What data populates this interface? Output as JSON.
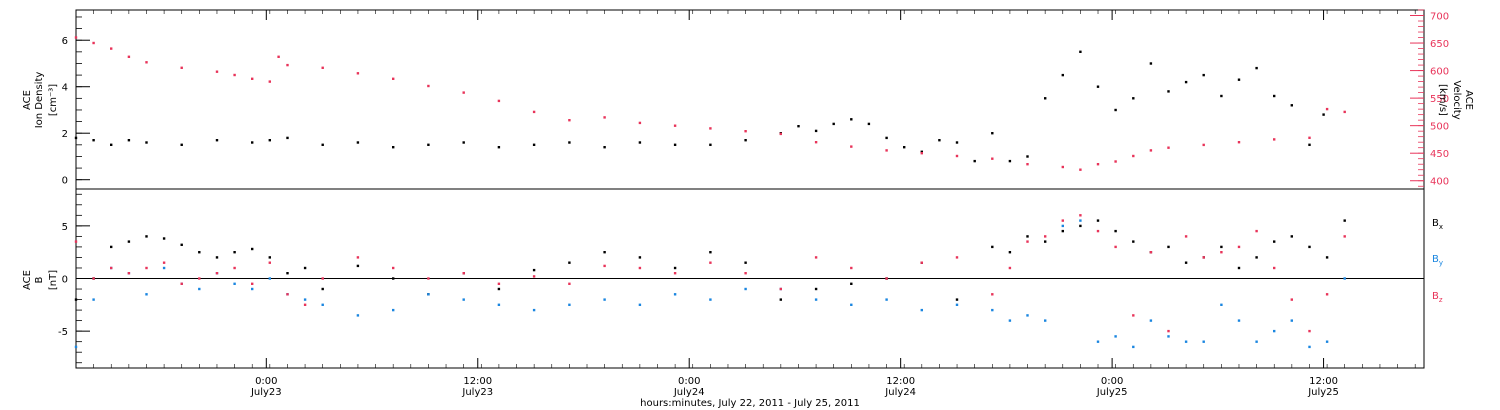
{
  "colors": {
    "density": "#000000",
    "velocity": "#e8345a",
    "bx": "#000000",
    "by": "#1a86e0",
    "bz": "#e8345a",
    "axis": "#000000"
  },
  "xaxis": {
    "title": "hours:minutes, July 22, 2011 - July 25, 2011",
    "range_hours": [
      0,
      76.5
    ],
    "ticks": [
      {
        "hour": 10.8,
        "time": "0:00",
        "date": "July23"
      },
      {
        "hour": 22.8,
        "time": "12:00",
        "date": "July23"
      },
      {
        "hour": 34.8,
        "time": "0:00",
        "date": "July24"
      },
      {
        "hour": 46.8,
        "time": "12:00",
        "date": "July24"
      },
      {
        "hour": 58.8,
        "time": "0:00",
        "date": "July25"
      },
      {
        "hour": 70.8,
        "time": "12:00",
        "date": "July25"
      }
    ]
  },
  "chart_data": [
    {
      "type": "scatter",
      "panel": "top",
      "ylabel_left": [
        "ACE",
        "Ion Density",
        "[cm⁻³]"
      ],
      "ylabel_right": [
        "ACE",
        "Velocity",
        "[km/s]"
      ],
      "ylim_left": [
        -0.4,
        7.3
      ],
      "ylim_right": [
        385,
        710
      ],
      "left_ticks": [
        "0",
        "2",
        "4",
        "6"
      ],
      "right_ticks": [
        "400",
        "450",
        "500",
        "550",
        "600",
        "650",
        "700"
      ],
      "series": [
        {
          "axis": "left",
          "color_key": "density",
          "x": [
            0,
            1,
            2,
            3,
            4,
            6,
            8,
            10,
            11,
            12,
            14,
            16,
            18,
            20,
            22,
            24,
            26,
            28,
            30,
            32,
            34,
            36,
            38,
            40,
            41,
            42,
            43,
            44,
            45,
            46,
            47,
            48,
            49,
            50,
            51,
            52,
            53,
            54,
            55,
            56,
            57,
            58,
            59,
            60,
            61,
            62,
            63,
            64,
            65,
            66,
            67,
            68,
            69,
            70,
            70.8
          ],
          "y": [
            1.8,
            1.7,
            1.5,
            1.7,
            1.6,
            1.5,
            1.7,
            1.6,
            1.7,
            1.8,
            1.5,
            1.6,
            1.4,
            1.5,
            1.6,
            1.4,
            1.5,
            1.6,
            1.4,
            1.6,
            1.5,
            1.5,
            1.7,
            2.0,
            2.3,
            2.1,
            2.4,
            2.6,
            2.4,
            1.8,
            1.4,
            1.2,
            1.7,
            1.6,
            0.8,
            2.0,
            0.8,
            1.0,
            3.5,
            4.5,
            5.5,
            4.0,
            3.0,
            3.5,
            5.0,
            3.8,
            4.2,
            4.5,
            3.6,
            4.3,
            4.8,
            3.6,
            3.2,
            1.5,
            2.8
          ]
        },
        {
          "axis": "right",
          "color_key": "velocity",
          "x": [
            0,
            1,
            2,
            3,
            4,
            6,
            8,
            9,
            10,
            11,
            11.5,
            12,
            14,
            16,
            18,
            20,
            22,
            24,
            26,
            28,
            30,
            32,
            34,
            36,
            38,
            40,
            42,
            44,
            46,
            48,
            50,
            52,
            54,
            56,
            57,
            58,
            59,
            60,
            61,
            62,
            64,
            66,
            68,
            70,
            71,
            72
          ],
          "y": [
            660,
            650,
            640,
            625,
            615,
            605,
            598,
            592,
            585,
            580,
            625,
            610,
            605,
            595,
            585,
            572,
            560,
            545,
            525,
            510,
            515,
            505,
            500,
            495,
            490,
            485,
            470,
            462,
            455,
            450,
            445,
            440,
            430,
            425,
            420,
            430,
            435,
            445,
            455,
            460,
            465,
            470,
            475,
            478,
            530,
            525
          ]
        }
      ]
    },
    {
      "type": "scatter",
      "panel": "bottom",
      "ylabel_left": [
        "ACE",
        "B",
        "[nT]"
      ],
      "ylim": [
        -8.5,
        8.5
      ],
      "left_ticks": [
        "-5",
        "0",
        "5"
      ],
      "series": [
        {
          "name": "Bx",
          "color_key": "bx",
          "x": [
            0,
            1,
            2,
            3,
            4,
            5,
            6,
            7,
            8,
            9,
            10,
            11,
            12,
            13,
            14,
            16,
            18,
            20,
            22,
            24,
            26,
            28,
            30,
            32,
            34,
            36,
            38,
            40,
            42,
            44,
            46,
            48,
            50,
            52,
            53,
            54,
            55,
            56,
            57,
            58,
            59,
            60,
            61,
            62,
            63,
            64,
            65,
            66,
            67,
            68,
            69,
            70,
            71,
            72
          ],
          "y": [
            -2,
            0,
            3,
            3.5,
            4,
            3.8,
            3.2,
            2.5,
            2,
            2.5,
            2.8,
            2,
            0.5,
            1,
            -1,
            1.2,
            0,
            -1.5,
            0.5,
            -1,
            0.8,
            1.5,
            2.5,
            2,
            1,
            2.5,
            1.5,
            -2,
            -1,
            -0.5,
            0,
            1.5,
            -2,
            3,
            2.5,
            4,
            3.5,
            4.5,
            5,
            5.5,
            4.5,
            3.5,
            2.5,
            3,
            1.5,
            2,
            3,
            1,
            2,
            3.5,
            4,
            3,
            2,
            5.5
          ]
        },
        {
          "name": "By",
          "color_key": "by",
          "x": [
            0,
            1,
            2,
            3,
            4,
            5,
            6,
            7,
            8,
            9,
            10,
            11,
            12,
            13,
            14,
            16,
            18,
            20,
            22,
            24,
            26,
            28,
            30,
            32,
            34,
            36,
            38,
            40,
            42,
            44,
            46,
            48,
            50,
            52,
            53,
            54,
            55,
            56,
            57,
            58,
            59,
            60,
            61,
            62,
            63,
            64,
            65,
            66,
            67,
            68,
            69,
            70,
            71,
            72
          ],
          "y": [
            -6.5,
            -2,
            1,
            0.5,
            -1.5,
            1,
            -0.5,
            -1,
            0.5,
            -0.5,
            -1,
            0,
            -1.5,
            -2,
            -2.5,
            -3.5,
            -3,
            -1.5,
            -2,
            -2.5,
            -3,
            -2.5,
            -2,
            -2.5,
            -1.5,
            -2,
            -1,
            -1,
            -2,
            -2.5,
            -2,
            -3,
            -2.5,
            -3,
            -4,
            -3.5,
            -4,
            5,
            5.5,
            -6,
            -5.5,
            -6.5,
            -4,
            -5.5,
            -6,
            -6,
            -2.5,
            -4,
            -6,
            -5,
            -4,
            -6.5,
            -6,
            0
          ]
        },
        {
          "name": "Bz",
          "color_key": "bz",
          "x": [
            0,
            1,
            2,
            3,
            4,
            5,
            6,
            7,
            8,
            9,
            10,
            11,
            12,
            13,
            14,
            16,
            18,
            20,
            22,
            24,
            26,
            28,
            30,
            32,
            34,
            36,
            38,
            40,
            42,
            44,
            46,
            48,
            50,
            52,
            53,
            54,
            55,
            56,
            57,
            58,
            59,
            60,
            61,
            62,
            63,
            64,
            65,
            66,
            67,
            68,
            69,
            70,
            71,
            72
          ],
          "y": [
            3.5,
            0,
            1,
            0.5,
            1,
            1.5,
            -0.5,
            0,
            0.5,
            1,
            -0.5,
            1.5,
            -1.5,
            -2.5,
            0,
            2,
            1,
            0,
            0.5,
            -0.5,
            0.2,
            -0.5,
            1.2,
            1,
            0.5,
            1.5,
            0.5,
            -1,
            2,
            1,
            0,
            1.5,
            2,
            -1.5,
            1,
            3.5,
            4,
            5.5,
            6,
            4.5,
            3,
            -3.5,
            2.5,
            -5,
            4,
            2,
            2.5,
            3,
            4.5,
            1,
            -2,
            -5,
            -1.5,
            4
          ]
        }
      ],
      "legend": [
        {
          "label": "B",
          "sub": "x",
          "color_key": "bx"
        },
        {
          "label": "B",
          "sub": "y",
          "color_key": "by"
        },
        {
          "label": "B",
          "sub": "z",
          "color_key": "bz"
        }
      ]
    }
  ]
}
